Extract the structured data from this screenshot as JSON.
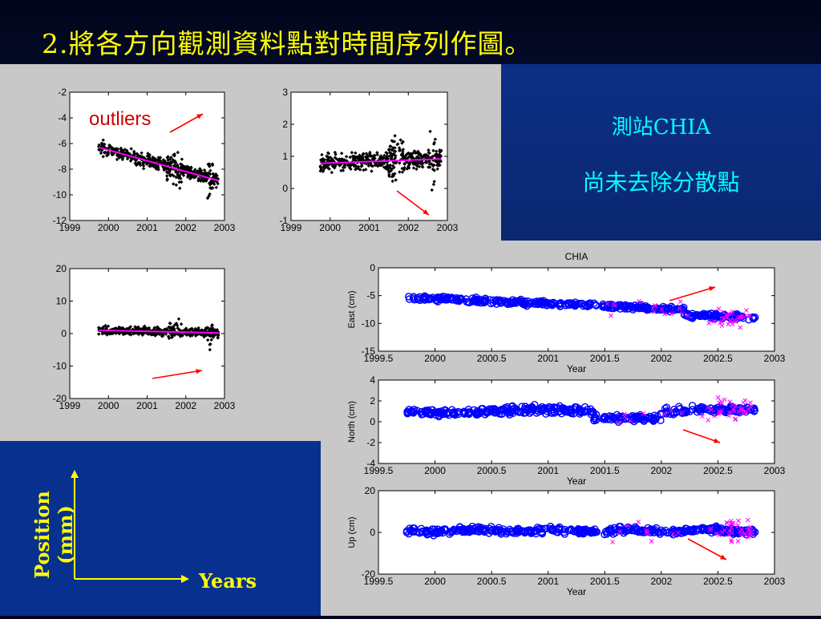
{
  "slide": {
    "title": "2.將各方向觀測資料點對時間序列作圖。",
    "station": "測站CHIA",
    "note": "尚未去除分散點",
    "y_axis_label": "Position (mm)",
    "x_axis_label": "Years",
    "outliers_label": "outliers"
  },
  "colors": {
    "title": "#ffff00",
    "side_text": "#00ffff",
    "panel": "#c8c8c8",
    "points": "#000000",
    "trend": "#ff00ff",
    "arrow": "#ff0000",
    "circles": "#0000ff",
    "crosses": "#ff00ff"
  },
  "chart_data": [
    {
      "type": "scatter",
      "xlim": [
        1999,
        2003
      ],
      "ylim": [
        -12,
        -2
      ],
      "xticks": [
        "1999",
        "2000",
        "2001",
        "2002",
        "2003"
      ],
      "yticks": [
        "-2",
        "-4",
        "-6",
        "-8",
        "-10",
        "-12"
      ],
      "trend": [
        [
          1999.75,
          -6.3
        ],
        [
          2002.85,
          -8.9
        ]
      ],
      "annotation": "outliers"
    },
    {
      "type": "scatter",
      "xlim": [
        1999,
        2003
      ],
      "ylim": [
        -1,
        3
      ],
      "xticks": [
        "1999",
        "2000",
        "2001",
        "2002",
        "2003"
      ],
      "yticks": [
        "3",
        "2",
        "1",
        "0",
        "-1"
      ],
      "trend": [
        [
          1999.75,
          0.78
        ],
        [
          2002.85,
          0.92
        ]
      ]
    },
    {
      "type": "scatter",
      "xlim": [
        1999,
        2003
      ],
      "ylim": [
        -20,
        20
      ],
      "xticks": [
        "1999",
        "2000",
        "2001",
        "2002",
        "2003"
      ],
      "yticks": [
        "20",
        "10",
        "0",
        "-10",
        "-20"
      ],
      "trend": [
        [
          1999.75,
          1.0
        ],
        [
          2002.85,
          0.2
        ]
      ]
    },
    {
      "type": "scatter",
      "title": "CHIA",
      "ylabel": "East  (cm)",
      "xlabel": "Year",
      "xlim": [
        1999.5,
        2003
      ],
      "ylim": [
        -15,
        0
      ],
      "xticks": [
        "1999.5",
        "2000",
        "2000.5",
        "2001",
        "2001.5",
        "2002",
        "2002.5",
        "2003"
      ],
      "yticks": [
        "0",
        "-5",
        "-10",
        "-15"
      ]
    },
    {
      "type": "scatter",
      "ylabel": "North (cm)",
      "xlabel": "Year",
      "xlim": [
        1999.5,
        2003
      ],
      "ylim": [
        -4,
        4
      ],
      "xticks": [
        "1999.5",
        "2000",
        "2000.5",
        "2001",
        "2001.5",
        "2002",
        "2002.5",
        "2003"
      ],
      "yticks": [
        "4",
        "2",
        "0",
        "-2",
        "-4"
      ]
    },
    {
      "type": "scatter",
      "ylabel": "Up (cm)",
      "xlabel": "Year",
      "xlim": [
        1999.5,
        2003
      ],
      "ylim": [
        -20,
        20
      ],
      "xticks": [
        "1999.5",
        "2000",
        "2000.5",
        "2001",
        "2001.5",
        "2002",
        "2002.5",
        "2003"
      ],
      "yticks": [
        "20",
        "0",
        "-20"
      ]
    }
  ]
}
